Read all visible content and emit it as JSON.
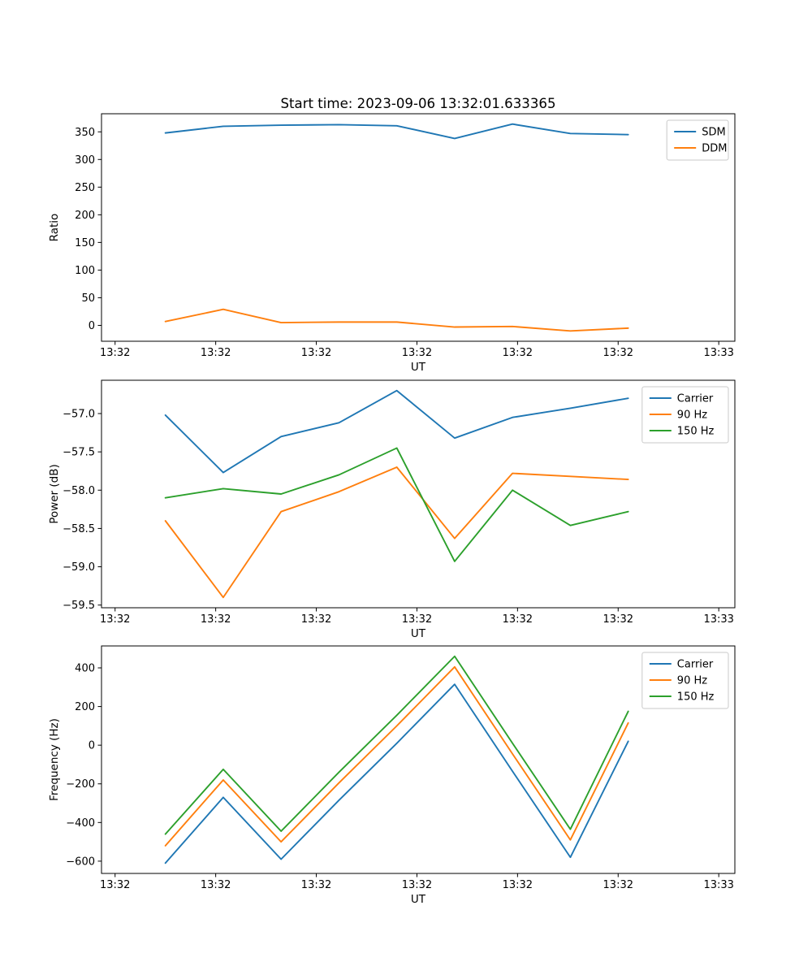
{
  "chart_data": [
    {
      "id": "ratio",
      "type": "line",
      "title": "Start time: 2023-09-06 13:32:01.633365",
      "xlabel": "UT",
      "ylabel": "Ratio",
      "legend_position": "upper right",
      "grid": false,
      "x_unit": "seconds after 13:32:00",
      "x": [
        5,
        10.75,
        16.5,
        22.25,
        28,
        33.75,
        39.5,
        45.25,
        51
      ],
      "xlim": [
        -1.35,
        61.6
      ],
      "ylim": [
        -28.7,
        382.7
      ],
      "xticks": [
        {
          "value": 0,
          "label": "13:32"
        },
        {
          "value": 10,
          "label": "13:32"
        },
        {
          "value": 20,
          "label": "13:32"
        },
        {
          "value": 30,
          "label": "13:32"
        },
        {
          "value": 40,
          "label": "13:32"
        },
        {
          "value": 50,
          "label": "13:32"
        },
        {
          "value": 60,
          "label": "13:33"
        }
      ],
      "yticks": [
        {
          "value": 0,
          "label": "0"
        },
        {
          "value": 50,
          "label": "50"
        },
        {
          "value": 100,
          "label": "100"
        },
        {
          "value": 150,
          "label": "150"
        },
        {
          "value": 200,
          "label": "200"
        },
        {
          "value": 250,
          "label": "250"
        },
        {
          "value": 300,
          "label": "300"
        },
        {
          "value": 350,
          "label": "350"
        }
      ],
      "series": [
        {
          "name": "SDM",
          "color": "#1f77b4",
          "values": [
            348,
            360,
            362,
            363,
            361,
            338,
            364,
            347,
            345
          ]
        },
        {
          "name": "DDM",
          "color": "#ff7f0e",
          "values": [
            7,
            29,
            5,
            6,
            6,
            -3,
            -2,
            -10,
            -5
          ]
        }
      ]
    },
    {
      "id": "power",
      "type": "line",
      "title": "",
      "xlabel": "UT",
      "ylabel": "Power (dB)",
      "legend_position": "upper right",
      "grid": false,
      "x_unit": "seconds after 13:32:00",
      "x": [
        5,
        10.75,
        16.5,
        22.25,
        28,
        33.75,
        39.5,
        45.25,
        51
      ],
      "xlim": [
        -1.35,
        61.6
      ],
      "ylim": [
        -59.535,
        -56.565
      ],
      "xticks": [
        {
          "value": 0,
          "label": "13:32"
        },
        {
          "value": 10,
          "label": "13:32"
        },
        {
          "value": 20,
          "label": "13:32"
        },
        {
          "value": 30,
          "label": "13:32"
        },
        {
          "value": 40,
          "label": "13:32"
        },
        {
          "value": 50,
          "label": "13:32"
        },
        {
          "value": 60,
          "label": "13:33"
        }
      ],
      "yticks": [
        {
          "value": -59.5,
          "label": "−59.5"
        },
        {
          "value": -59.0,
          "label": "−59.0"
        },
        {
          "value": -58.5,
          "label": "−58.5"
        },
        {
          "value": -58.0,
          "label": "−58.0"
        },
        {
          "value": -57.5,
          "label": "−57.5"
        },
        {
          "value": -57.0,
          "label": "−57.0"
        }
      ],
      "series": [
        {
          "name": "Carrier",
          "color": "#1f77b4",
          "values": [
            -57.02,
            -57.77,
            -57.3,
            -57.12,
            -56.7,
            -57.32,
            -57.05,
            -56.93,
            -56.8
          ]
        },
        {
          "name": "90 Hz",
          "color": "#ff7f0e",
          "values": [
            -58.4,
            -59.4,
            -58.28,
            -58.02,
            -57.7,
            -58.63,
            -57.78,
            -57.82,
            -57.86
          ]
        },
        {
          "name": "150 Hz",
          "color": "#2ca02c",
          "values": [
            -58.1,
            -57.98,
            -58.05,
            -57.8,
            -57.45,
            -58.93,
            -58.0,
            -58.46,
            -58.28
          ]
        }
      ]
    },
    {
      "id": "frequency",
      "type": "line",
      "title": "",
      "xlabel": "UT",
      "ylabel": "Frequency (Hz)",
      "legend_position": "upper right",
      "grid": false,
      "x_unit": "seconds after 13:32:00",
      "x": [
        5,
        10.75,
        16.5,
        22.25,
        28,
        33.75,
        39.5,
        45.25,
        51
      ],
      "xlim": [
        -1.35,
        61.6
      ],
      "ylim": [
        -663.5,
        513.5
      ],
      "xticks": [
        {
          "value": 0,
          "label": "13:32"
        },
        {
          "value": 10,
          "label": "13:32"
        },
        {
          "value": 20,
          "label": "13:32"
        },
        {
          "value": 30,
          "label": "13:32"
        },
        {
          "value": 40,
          "label": "13:32"
        },
        {
          "value": 50,
          "label": "13:32"
        },
        {
          "value": 60,
          "label": "13:33"
        }
      ],
      "yticks": [
        {
          "value": -600,
          "label": "−600"
        },
        {
          "value": -400,
          "label": "−400"
        },
        {
          "value": -200,
          "label": "−200"
        },
        {
          "value": 0,
          "label": "0"
        },
        {
          "value": 200,
          "label": "200"
        },
        {
          "value": 400,
          "label": "400"
        }
      ],
      "series": [
        {
          "name": "Carrier",
          "color": "#1f77b4",
          "values": [
            -610,
            -270,
            -590,
            -285,
            10,
            315,
            -135,
            -580,
            20
          ]
        },
        {
          "name": "90 Hz",
          "color": "#ff7f0e",
          "values": [
            -520,
            -180,
            -500,
            -195,
            100,
            405,
            -45,
            -490,
            115
          ]
        },
        {
          "name": "150 Hz",
          "color": "#2ca02c",
          "values": [
            -460,
            -125,
            -445,
            -140,
            155,
            460,
            10,
            -435,
            175
          ]
        }
      ]
    }
  ]
}
